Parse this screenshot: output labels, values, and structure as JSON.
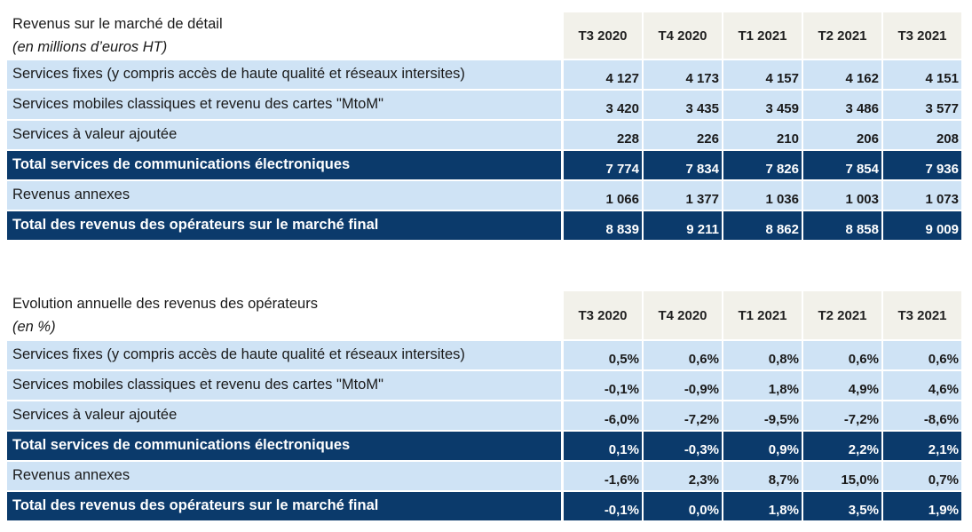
{
  "columns": [
    "T3 2020",
    "T4 2020",
    "T1 2021",
    "T2 2021",
    "T3 2021"
  ],
  "colors": {
    "light_row": "#cfe3f5",
    "total_row": "#0b3a6b",
    "header": "#f2f1ea"
  },
  "table1": {
    "title": "Revenus sur le marché de détail",
    "subtitle": "(en millions d’euros HT)",
    "rows": [
      {
        "label": "Services fixes (y compris accès de haute qualité et réseaux intersites)",
        "style": "light",
        "values": [
          "4 127",
          "4 173",
          "4 157",
          "4 162",
          "4 151"
        ]
      },
      {
        "label": "Services mobiles classiques et revenu des cartes \"MtoM\"",
        "style": "light",
        "values": [
          "3 420",
          "3 435",
          "3 459",
          "3 486",
          "3 577"
        ]
      },
      {
        "label": "Services à valeur ajoutée",
        "style": "light",
        "values": [
          "228",
          "226",
          "210",
          "206",
          "208"
        ]
      },
      {
        "label": "Total services de communications électroniques",
        "style": "dark",
        "values": [
          "7 774",
          "7 834",
          "7 826",
          "7 854",
          "7 936"
        ]
      },
      {
        "label": "Revenus annexes",
        "style": "light",
        "values": [
          "1 066",
          "1 377",
          "1 036",
          "1 003",
          "1 073"
        ]
      },
      {
        "label": "Total des revenus des opérateurs sur le marché final",
        "style": "dark",
        "values": [
          "8 839",
          "9 211",
          "8 862",
          "8 858",
          "9 009"
        ]
      }
    ]
  },
  "table2": {
    "title": "Evolution annuelle des revenus des opérateurs",
    "subtitle": "(en %)",
    "rows": [
      {
        "label": "Services fixes (y compris accès de haute qualité et réseaux intersites)",
        "style": "light",
        "values": [
          "0,5%",
          "0,6%",
          "0,8%",
          "0,6%",
          "0,6%"
        ]
      },
      {
        "label": "Services mobiles classiques et revenu des cartes \"MtoM\"",
        "style": "light",
        "values": [
          "-0,1%",
          "-0,9%",
          "1,8%",
          "4,9%",
          "4,6%"
        ]
      },
      {
        "label": "Services à valeur ajoutée",
        "style": "light",
        "values": [
          "-6,0%",
          "-7,2%",
          "-9,5%",
          "-7,2%",
          "-8,6%"
        ]
      },
      {
        "label": "Total services de communications électroniques",
        "style": "dark",
        "values": [
          "0,1%",
          "-0,3%",
          "0,9%",
          "2,2%",
          "2,1%"
        ]
      },
      {
        "label": "Revenus annexes",
        "style": "light",
        "values": [
          "-1,6%",
          "2,3%",
          "8,7%",
          "15,0%",
          "0,7%"
        ]
      },
      {
        "label": "Total des revenus des opérateurs sur le marché final",
        "style": "dark",
        "values": [
          "-0,1%",
          "0,0%",
          "1,8%",
          "3,5%",
          "1,9%"
        ]
      }
    ]
  }
}
